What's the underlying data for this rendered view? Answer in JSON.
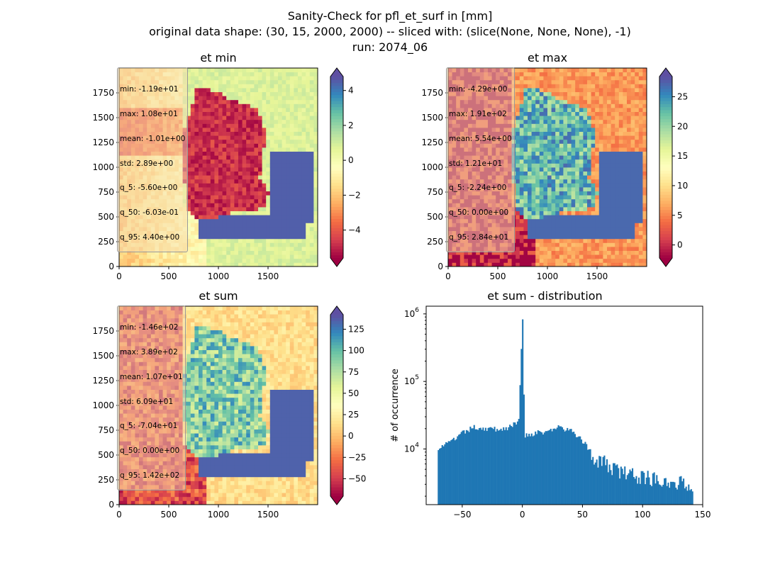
{
  "suptitle": {
    "line1": "Sanity-Check for pfl_et_surf in [mm]",
    "line2": "original data shape: (30, 15, 2000, 2000) -- sliced with: (slice(None, None, None), -1)",
    "line3": "run: 2074_06"
  },
  "chart_data": [
    {
      "type": "heatmap",
      "title": "et min",
      "xlim": [
        0,
        2000
      ],
      "ylim": [
        0,
        2000
      ],
      "xticks": [
        0,
        500,
        1000,
        1500
      ],
      "yticks": [
        0,
        250,
        500,
        750,
        1000,
        1250,
        1500,
        1750
      ],
      "colorbar": {
        "ticks": [
          "−4",
          "−2",
          "0",
          "2",
          "4"
        ],
        "range": [
          -5.6,
          4.8
        ],
        "cmap": "Spectral"
      },
      "stats": [
        "min: -1.19e+01",
        "max: 1.08e+01",
        "mean: -1.01e+00",
        "std: 2.89e+00",
        "q_5: -5.60e+00",
        "q_50: -6.03e-01",
        "q_95: 4.40e+00"
      ]
    },
    {
      "type": "heatmap",
      "title": "et max",
      "xlim": [
        0,
        2000
      ],
      "ylim": [
        0,
        2000
      ],
      "xticks": [
        0,
        500,
        1000,
        1500
      ],
      "yticks": [
        0,
        250,
        500,
        750,
        1000,
        1250,
        1500,
        1750
      ],
      "colorbar": {
        "ticks": [
          "0",
          "5",
          "10",
          "15",
          "20",
          "25"
        ],
        "range": [
          -2.2,
          28.4
        ],
        "cmap": "Spectral"
      },
      "stats": [
        "min: -4.29e+00",
        "max: 1.91e+02",
        "mean: 5.54e+00",
        "std: 1.21e+01",
        "q_5: -2.24e+00",
        "q_50: 0.00e+00",
        "q_95: 2.84e+01"
      ]
    },
    {
      "type": "heatmap",
      "title": "et sum",
      "xlim": [
        0,
        2000
      ],
      "ylim": [
        0,
        2000
      ],
      "xticks": [
        0,
        500,
        1000,
        1500
      ],
      "yticks": [
        0,
        250,
        500,
        750,
        1000,
        1250,
        1500,
        1750
      ],
      "colorbar": {
        "ticks": [
          "−50",
          "−25",
          "0",
          "25",
          "50",
          "75",
          "100",
          "125"
        ],
        "range": [
          -70.4,
          142
        ],
        "cmap": "Spectral"
      },
      "stats": [
        "min: -1.46e+02",
        "max: 3.89e+02",
        "mean: 1.07e+01",
        "std: 6.09e+01",
        "q_5: -7.04e+01",
        "q_50: 0.00e+00",
        "q_95: 1.42e+02"
      ]
    },
    {
      "type": "bar",
      "title": "et sum - distribution",
      "ylabel": "# of occurrence",
      "xlabel": "",
      "yscale": "log",
      "xlim": [
        -80,
        150
      ],
      "xticks": [
        "−50",
        "0",
        "50",
        "100",
        "150"
      ],
      "yticks": [
        "10^4",
        "10^5",
        "10^6"
      ],
      "color": "#1f77b4",
      "bin_range": [
        -70.4,
        142
      ],
      "bins": 200,
      "profile_points": [
        [
          -70,
          10500
        ],
        [
          -60,
          12500
        ],
        [
          -50,
          17000
        ],
        [
          -40,
          21000
        ],
        [
          -30,
          20000
        ],
        [
          -20,
          19500
        ],
        [
          -10,
          21000
        ],
        [
          -3,
          26000
        ],
        [
          0,
          830000
        ],
        [
          2,
          16000
        ],
        [
          10,
          17000
        ],
        [
          20,
          18000
        ],
        [
          30,
          21000
        ],
        [
          40,
          18500
        ],
        [
          50,
          13500
        ],
        [
          55,
          10500
        ],
        [
          60,
          7500
        ],
        [
          70,
          5800
        ],
        [
          80,
          4700
        ],
        [
          90,
          4000
        ],
        [
          100,
          3900
        ],
        [
          110,
          3600
        ],
        [
          120,
          3500
        ],
        [
          130,
          3100
        ],
        [
          142,
          3000
        ]
      ]
    }
  ]
}
